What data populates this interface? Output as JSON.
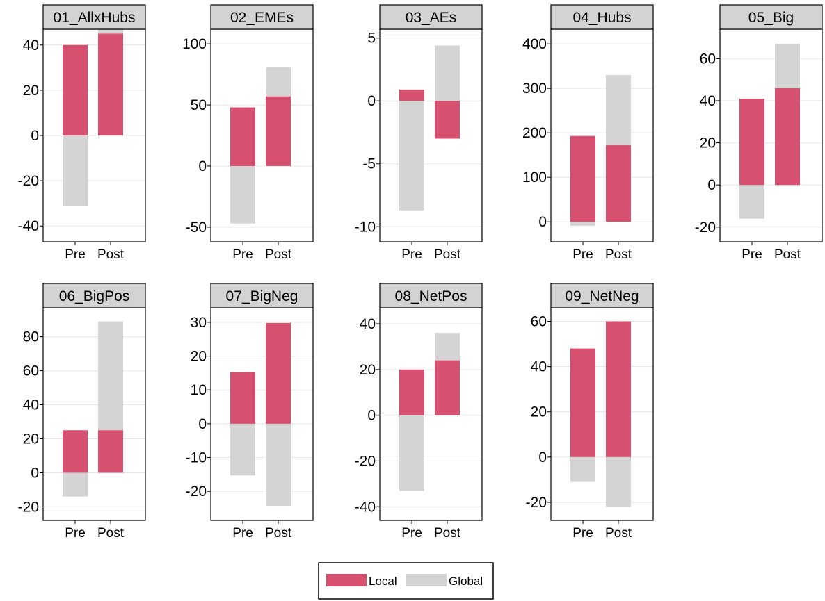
{
  "colors": {
    "local": "#d6506f",
    "global": "#d4d4d4",
    "grid": "#e6e6e6",
    "strip": "#d3d3d3"
  },
  "legend": {
    "local_label": "Local",
    "global_label": "Global",
    "placement": "bottom-center"
  },
  "chart_data": [
    {
      "type": "bar",
      "stacked": true,
      "title": "01_AllxHubs",
      "categories": [
        "Pre",
        "Post"
      ],
      "series": [
        {
          "name": "Local",
          "values": [
            40,
            45
          ]
        },
        {
          "name": "Global",
          "values": [
            -31,
            2
          ]
        }
      ],
      "ylim": [
        -47,
        47
      ],
      "yticks": [
        -40,
        -20,
        0,
        20,
        40
      ],
      "ytick_labels": [
        "-40",
        "-20",
        "0",
        "20",
        "40"
      ],
      "grid": true
    },
    {
      "type": "bar",
      "stacked": true,
      "title": "02_EMEs",
      "categories": [
        "Pre",
        "Post"
      ],
      "series": [
        {
          "name": "Local",
          "values": [
            48,
            57
          ]
        },
        {
          "name": "Global",
          "values": [
            -47,
            24
          ]
        }
      ],
      "ylim": [
        -62,
        112
      ],
      "yticks": [
        -50,
        0,
        50,
        100
      ],
      "ytick_labels": [
        "-50",
        "0",
        "50",
        "100"
      ],
      "grid": true
    },
    {
      "type": "bar",
      "stacked": true,
      "title": "03_AEs",
      "categories": [
        "Pre",
        "Post"
      ],
      "series": [
        {
          "name": "Local",
          "values": [
            0.9,
            -3.0
          ]
        },
        {
          "name": "Global",
          "values": [
            -8.7,
            4.4
          ]
        }
      ],
      "ylim": [
        -11.2,
        5.7
      ],
      "yticks": [
        -10,
        -5,
        0,
        5
      ],
      "ytick_labels": [
        "-10",
        "-5",
        "0",
        "5"
      ],
      "grid": true
    },
    {
      "type": "bar",
      "stacked": true,
      "title": "04_Hubs",
      "categories": [
        "Pre",
        "Post"
      ],
      "series": [
        {
          "name": "Local",
          "values": [
            193,
            173
          ]
        },
        {
          "name": "Global",
          "values": [
            -9,
            157
          ]
        }
      ],
      "ylim": [
        -45,
        433
      ],
      "yticks": [
        0,
        100,
        200,
        300,
        400
      ],
      "ytick_labels": [
        "0",
        "100",
        "200",
        "300",
        "400"
      ],
      "grid": true
    },
    {
      "type": "bar",
      "stacked": true,
      "title": "05_Big",
      "categories": [
        "Pre",
        "Post"
      ],
      "series": [
        {
          "name": "Local",
          "values": [
            41,
            46
          ]
        },
        {
          "name": "Global",
          "values": [
            -16,
            21
          ]
        }
      ],
      "ylim": [
        -27,
        74
      ],
      "yticks": [
        -20,
        0,
        20,
        40,
        60
      ],
      "ytick_labels": [
        "-20",
        "0",
        "20",
        "40",
        "60"
      ],
      "grid": true
    },
    {
      "type": "bar",
      "stacked": true,
      "title": "06_BigPos",
      "categories": [
        "Pre",
        "Post"
      ],
      "series": [
        {
          "name": "Local",
          "values": [
            25,
            25
          ]
        },
        {
          "name": "Global",
          "values": [
            -14,
            64
          ]
        }
      ],
      "ylim": [
        -28,
        97
      ],
      "yticks": [
        -20,
        0,
        20,
        40,
        60,
        80
      ],
      "ytick_labels": [
        "-20",
        "0",
        "20",
        "40",
        "60",
        "80"
      ],
      "grid": true
    },
    {
      "type": "bar",
      "stacked": true,
      "title": "07_BigNeg",
      "categories": [
        "Pre",
        "Post"
      ],
      "series": [
        {
          "name": "Local",
          "values": [
            15.2,
            29.8
          ]
        },
        {
          "name": "Global",
          "values": [
            -15.3,
            -24.3
          ]
        }
      ],
      "ylim": [
        -28.6,
        34.3
      ],
      "yticks": [
        -20,
        -10,
        0,
        10,
        20,
        30
      ],
      "ytick_labels": [
        "-20",
        "-10",
        "0",
        "10",
        "20",
        "30"
      ],
      "grid": true
    },
    {
      "type": "bar",
      "stacked": true,
      "title": "08_NetPos",
      "categories": [
        "Pre",
        "Post"
      ],
      "series": [
        {
          "name": "Local",
          "values": [
            20,
            24
          ]
        },
        {
          "name": "Global",
          "values": [
            -33,
            12
          ]
        }
      ],
      "ylim": [
        -46,
        47
      ],
      "yticks": [
        -40,
        -20,
        0,
        20,
        40
      ],
      "ytick_labels": [
        "-40",
        "-20",
        "0",
        "20",
        "40"
      ],
      "grid": true
    },
    {
      "type": "bar",
      "stacked": true,
      "title": "09_NetNeg",
      "categories": [
        "Pre",
        "Post"
      ],
      "series": [
        {
          "name": "Local",
          "values": [
            48,
            60
          ]
        },
        {
          "name": "Global",
          "values": [
            -11,
            -22
          ]
        }
      ],
      "ylim": [
        -28,
        66
      ],
      "yticks": [
        -20,
        0,
        20,
        40,
        60
      ],
      "ytick_labels": [
        "-20",
        "0",
        "20",
        "40",
        "60"
      ],
      "grid": true
    }
  ]
}
